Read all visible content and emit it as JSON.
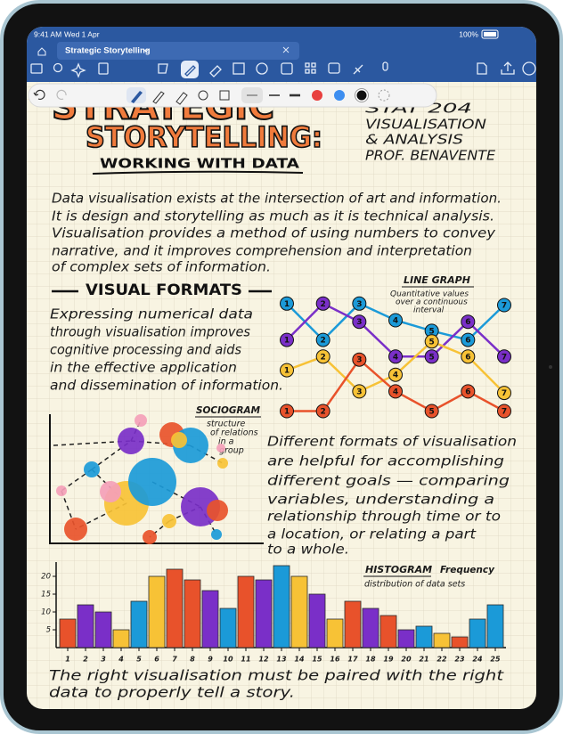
{
  "status_bar": {
    "time": "9:41 AM",
    "date": "Wed 1 Apr",
    "battery": "100%"
  },
  "tab": {
    "title": "Strategic Storytelling"
  },
  "note": {
    "title": [
      "STRATEGIC",
      "STORYTELLING:"
    ],
    "subtitle": "WORKING WITH DATA",
    "course": [
      "STAT 204",
      "VISUALISATION",
      "& ANALYSIS",
      "PROF. BENAVENTE"
    ],
    "intro": [
      "Data visualisation exists at the intersection of art and information.",
      "It is design and storytelling as much as it is technical analysis.",
      "Visualisation provides a method of using numbers to convey",
      "narrative, and it improves comprehension and interpretation",
      "of complex sets of information."
    ],
    "section": "VISUAL FORMATS",
    "formats_text": [
      "Expressing numerical data",
      "through visualisation improves",
      "cognitive processing and aids",
      "in the effective application",
      "and dissemination of information."
    ],
    "sociogram": {
      "title": "SOCIOGRAM",
      "caption": [
        "structure",
        "of relations",
        "in a",
        "group"
      ]
    },
    "goals_text": [
      "Different formats of visualisation",
      "are helpful for accomplishing",
      "different goals — comparing",
      "variables, understanding a",
      "relationship through time or to",
      "a location, or relating a part",
      "to a whole."
    ],
    "closing": [
      "The right visualisation must be paired with the right",
      "data to properly tell a story."
    ]
  },
  "chart_data": [
    {
      "type": "line",
      "title": "LINE GRAPH",
      "subtitle": [
        "Quantitative values",
        "over a continuous",
        "interval"
      ],
      "x": [
        1,
        2,
        3,
        4,
        5,
        6,
        7
      ],
      "xlim": [
        1,
        7
      ],
      "ylim": [
        0,
        8
      ],
      "series": [
        {
          "color": "#1b9ad8",
          "values": [
            7.6,
            5.2,
            7.6,
            6.5,
            5.8,
            5.2,
            7.5
          ]
        },
        {
          "color": "#7a2fc8",
          "values": [
            5.2,
            7.6,
            6.4,
            4.1,
            4.1,
            6.4,
            4.1
          ]
        },
        {
          "color": "#f7c236",
          "values": [
            3.2,
            4.1,
            1.8,
            2.9,
            5.1,
            4.1,
            1.7
          ]
        },
        {
          "color": "#e8522b",
          "values": [
            0.5,
            0.5,
            3.9,
            1.8,
            0.5,
            1.8,
            0.5
          ]
        }
      ]
    },
    {
      "type": "bar",
      "title": "HISTOGRAM",
      "subtitle": [
        "Frequency",
        "distribution of data sets"
      ],
      "categories": [
        1,
        2,
        3,
        4,
        5,
        6,
        7,
        8,
        9,
        10,
        11,
        12,
        13,
        14,
        15,
        16,
        17,
        18,
        19,
        20,
        21,
        22,
        23,
        24,
        25
      ],
      "values": [
        8,
        12,
        10,
        5,
        13,
        20,
        22,
        19,
        16,
        11,
        20,
        19,
        23,
        20,
        15,
        8,
        13,
        11,
        9,
        5,
        6,
        4,
        3,
        8,
        12
      ],
      "colors": [
        "#e8522b",
        "#7a2fc8",
        "#7a2fc8",
        "#f7c236",
        "#1b9ad8",
        "#f7c236",
        "#e8522b",
        "#e8522b",
        "#7a2fc8",
        "#1b9ad8",
        "#e8522b",
        "#7a2fc8",
        "#1b9ad8",
        "#f7c236",
        "#7a2fc8",
        "#f7c236",
        "#e8522b",
        "#7a2fc8",
        "#e8522b",
        "#7a2fc8",
        "#1b9ad8",
        "#f7c236",
        "#e8522b",
        "#1b9ad8",
        "#1b9ad8"
      ],
      "ylim": [
        0,
        24
      ],
      "yticks": [
        5,
        10,
        15,
        20
      ]
    }
  ]
}
